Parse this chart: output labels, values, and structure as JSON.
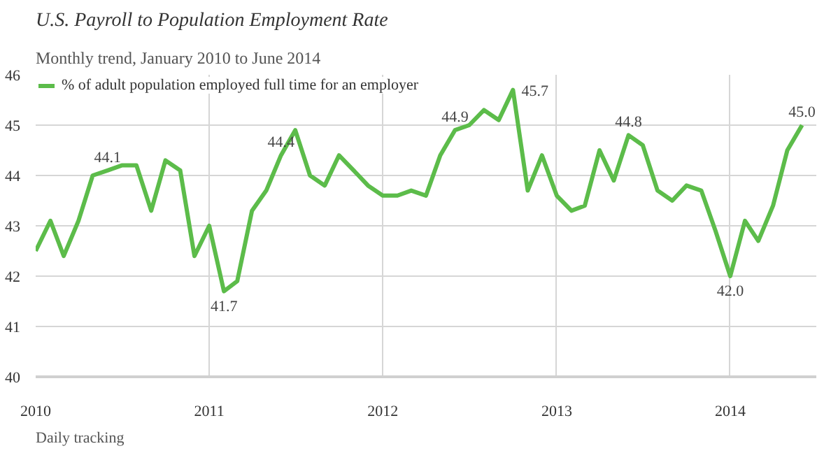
{
  "chart_data": {
    "type": "line",
    "title": "U.S. Payroll to Population Employment Rate",
    "subtitle": "Monthly trend, January 2010 to June 2014",
    "x": [
      "2010-01",
      "2010-02",
      "2010-03",
      "2010-04",
      "2010-05",
      "2010-06",
      "2010-07",
      "2010-08",
      "2010-09",
      "2010-10",
      "2010-11",
      "2010-12",
      "2011-01",
      "2011-02",
      "2011-03",
      "2011-04",
      "2011-05",
      "2011-06",
      "2011-07",
      "2011-08",
      "2011-09",
      "2011-10",
      "2011-11",
      "2011-12",
      "2012-01",
      "2012-02",
      "2012-03",
      "2012-04",
      "2012-05",
      "2012-06",
      "2012-07",
      "2012-08",
      "2012-09",
      "2012-10",
      "2012-11",
      "2012-12",
      "2013-01",
      "2013-02",
      "2013-03",
      "2013-04",
      "2013-05",
      "2013-06",
      "2013-07",
      "2013-08",
      "2013-09",
      "2013-10",
      "2013-11",
      "2013-12",
      "2014-01",
      "2014-02",
      "2014-03",
      "2014-04",
      "2014-05",
      "2014-06"
    ],
    "series": [
      {
        "name": "% of adult population employed full time for an employer",
        "color": "#5cbc4a",
        "values": [
          42.5,
          43.1,
          42.4,
          43.1,
          44.0,
          44.1,
          44.2,
          44.2,
          43.3,
          44.3,
          44.1,
          42.4,
          43.0,
          41.7,
          41.9,
          43.3,
          43.7,
          44.4,
          44.9,
          44.0,
          43.8,
          44.4,
          44.1,
          43.8,
          43.6,
          43.6,
          43.7,
          43.6,
          44.4,
          44.9,
          45.0,
          45.3,
          45.1,
          45.7,
          43.7,
          44.4,
          43.6,
          43.3,
          43.4,
          44.5,
          43.9,
          44.8,
          44.6,
          43.7,
          43.5,
          43.8,
          43.7,
          42.9,
          42.0,
          43.1,
          42.7,
          43.4,
          44.5,
          45.0
        ]
      }
    ],
    "annotations": [
      {
        "text": "44.1",
        "x": "2010-06",
        "y": 44.1
      },
      {
        "text": "41.7",
        "x": "2011-02",
        "y": 41.7
      },
      {
        "text": "44.4",
        "x": "2011-06",
        "y": 44.4
      },
      {
        "text": "44.9",
        "x": "2012-06",
        "y": 44.9
      },
      {
        "text": "45.7",
        "x": "2012-10",
        "y": 45.7
      },
      {
        "text": "44.8",
        "x": "2013-06",
        "y": 44.8
      },
      {
        "text": "42.0",
        "x": "2014-01",
        "y": 42.0
      },
      {
        "text": "45.0",
        "x": "2014-06",
        "y": 45.0
      },
      "Daily tracking"
    ],
    "xlim": [
      "2010-01",
      "2014-07"
    ],
    "xticks": [
      {
        "value": "2010-01",
        "label": "2010"
      },
      {
        "value": "2011-01",
        "label": "2011"
      },
      {
        "value": "2012-01",
        "label": "2012"
      },
      {
        "value": "2013-01",
        "label": "2013"
      },
      {
        "value": "2014-01",
        "label": "2014"
      }
    ],
    "ylim": [
      40,
      46
    ],
    "yticks": [
      40,
      41,
      42,
      43,
      44,
      45,
      46
    ],
    "grid": true,
    "legend": "top left",
    "marker": "none",
    "line_style": "solid"
  }
}
